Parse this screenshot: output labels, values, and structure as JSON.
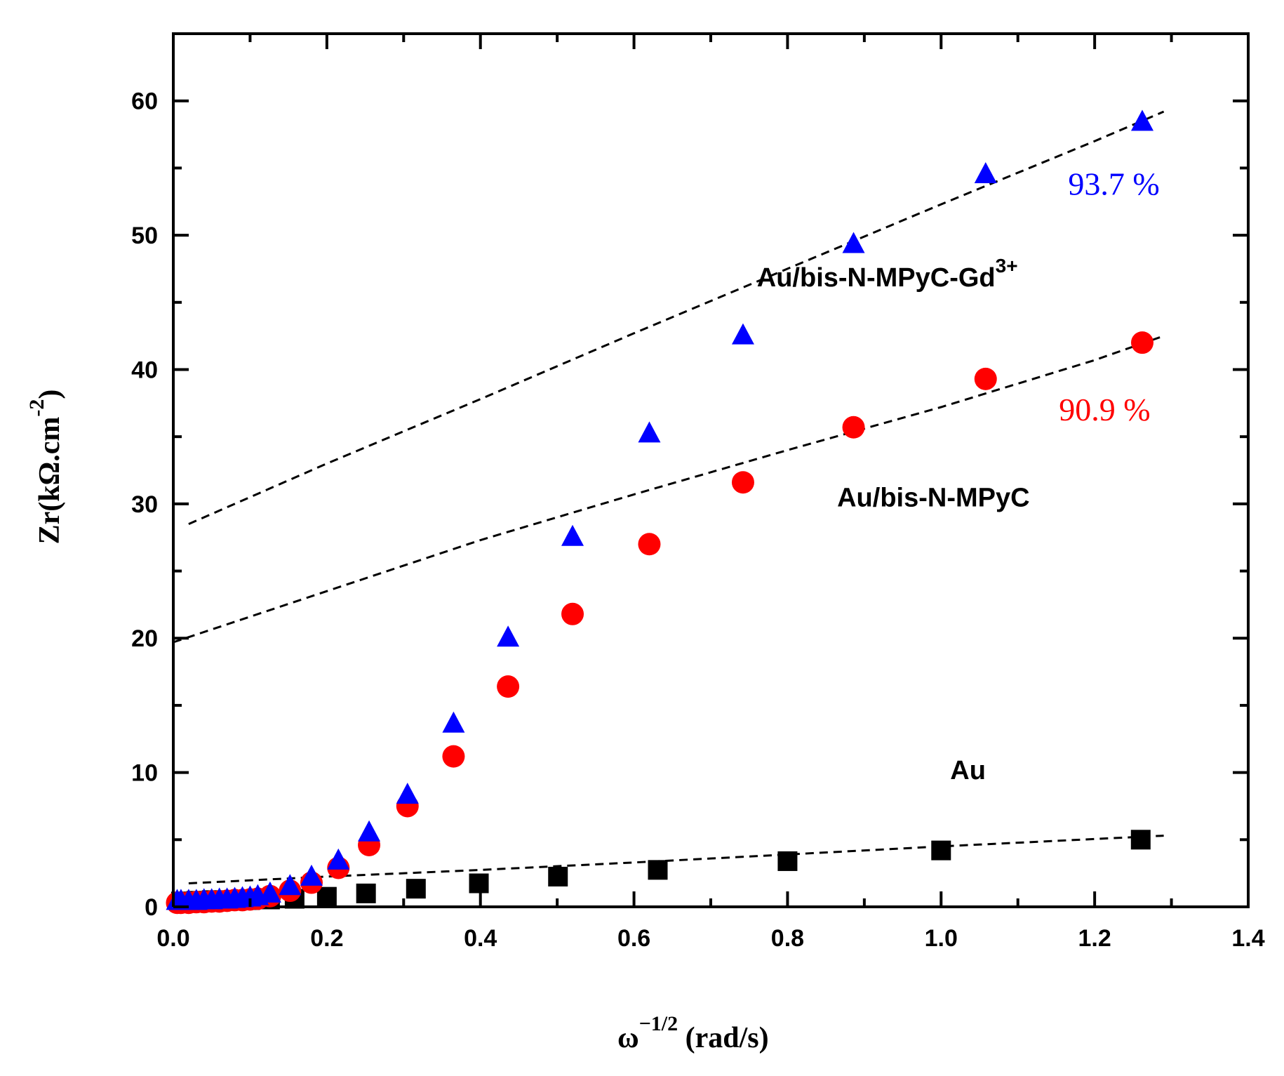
{
  "chart_data": {
    "type": "scatter",
    "title": "",
    "xlabel": {
      "base": "ω",
      "exp": "−1/2",
      "unit": " (rad/s)"
    },
    "ylabel": {
      "base": "Zr(kΩ.cm",
      "exp": "-2",
      "close": ")"
    },
    "xlim": [
      0,
      1.4
    ],
    "ylim": [
      0,
      65
    ],
    "xticks": [
      "0.0",
      "0.2",
      "0.4",
      "0.6",
      "0.8",
      "1.0",
      "1.2",
      "1.4"
    ],
    "yticks": [
      "0",
      "10",
      "20",
      "30",
      "40",
      "50",
      "60"
    ],
    "series": [
      {
        "name": "Au",
        "marker": "square",
        "color": "#000000",
        "x": [
          0.01,
          0.02,
          0.03,
          0.04,
          0.05,
          0.06,
          0.08,
          0.1,
          0.126,
          0.158,
          0.2,
          0.251,
          0.316,
          0.398,
          0.501,
          0.631,
          0.8,
          1.0,
          1.26
        ],
        "y": [
          0.4,
          0.4,
          0.45,
          0.45,
          0.5,
          0.5,
          0.5,
          0.5,
          0.55,
          0.6,
          0.75,
          1.0,
          1.35,
          1.75,
          2.25,
          2.75,
          3.4,
          4.2,
          5.0
        ]
      },
      {
        "name": "Au/bis-N-MPyC",
        "marker": "circle",
        "color": "#ff0000",
        "x": [
          0.005,
          0.01,
          0.02,
          0.03,
          0.04,
          0.05,
          0.06,
          0.07,
          0.08,
          0.09,
          0.1,
          0.11,
          0.126,
          0.152,
          0.18,
          0.215,
          0.255,
          0.305,
          0.365,
          0.436,
          0.52,
          0.62,
          0.742,
          0.886,
          1.058,
          1.262
        ],
        "y": [
          0.3,
          0.3,
          0.3,
          0.35,
          0.35,
          0.4,
          0.4,
          0.45,
          0.5,
          0.5,
          0.55,
          0.6,
          0.8,
          1.2,
          1.8,
          2.9,
          4.6,
          7.5,
          11.2,
          16.4,
          21.8,
          27.0,
          31.6,
          35.7,
          39.3,
          42.0
        ]
      },
      {
        "name": "Au/bis-N-MPyC-Gd3+",
        "marker": "triangle",
        "color": "#0000ff",
        "x": [
          0.005,
          0.01,
          0.02,
          0.03,
          0.04,
          0.05,
          0.06,
          0.07,
          0.08,
          0.09,
          0.1,
          0.11,
          0.126,
          0.152,
          0.18,
          0.215,
          0.255,
          0.305,
          0.365,
          0.436,
          0.52,
          0.62,
          0.742,
          0.886,
          1.058,
          1.262
        ],
        "y": [
          0.4,
          0.4,
          0.4,
          0.4,
          0.45,
          0.45,
          0.5,
          0.5,
          0.55,
          0.6,
          0.65,
          0.75,
          0.95,
          1.5,
          2.2,
          3.4,
          5.5,
          8.3,
          13.6,
          20.0,
          27.5,
          35.2,
          42.5,
          49.3,
          54.5,
          58.4
        ]
      }
    ],
    "fits": [
      {
        "name": "Au fit",
        "style": "dashed",
        "x": [
          0.02,
          0.2,
          0.4,
          0.6,
          0.8,
          1.0,
          1.29
        ],
        "y": [
          1.75,
          2.25,
          2.75,
          3.3,
          3.9,
          4.5,
          5.3
        ]
      },
      {
        "name": "Au/bis-N-MPyC fit",
        "style": "dashed",
        "x": [
          0.0,
          0.2,
          0.4,
          0.6,
          0.8,
          1.0,
          1.2,
          1.29
        ],
        "y": [
          19.7,
          23.5,
          27.3,
          30.7,
          34.0,
          37.2,
          40.7,
          42.5
        ]
      },
      {
        "name": "Au/bis-N-MPyC-Gd3+ fit",
        "style": "dashed",
        "x": [
          0.02,
          0.2,
          0.4,
          0.6,
          0.8,
          1.0,
          1.2,
          1.29
        ],
        "y": [
          28.5,
          33.0,
          37.8,
          42.7,
          47.5,
          52.3,
          57.0,
          59.2
        ]
      }
    ],
    "annotations": [
      {
        "text": "93.7 %",
        "color": "#0000ff",
        "x": 1.225,
        "y": 53.0
      },
      {
        "text": "90.9 %",
        "color": "#ff0000",
        "x": 1.213,
        "y": 36.2
      },
      {
        "text": "Au/bis-N-MPyC-Gd",
        "sup": "3+",
        "color": "#000000",
        "x": 0.93,
        "y": 46.2
      },
      {
        "text": "Au/bis-N-MPyC",
        "color": "#000000",
        "x": 0.99,
        "y": 29.8
      },
      {
        "text": "Au",
        "color": "#000000",
        "x": 1.035,
        "y": 9.5
      }
    ]
  }
}
